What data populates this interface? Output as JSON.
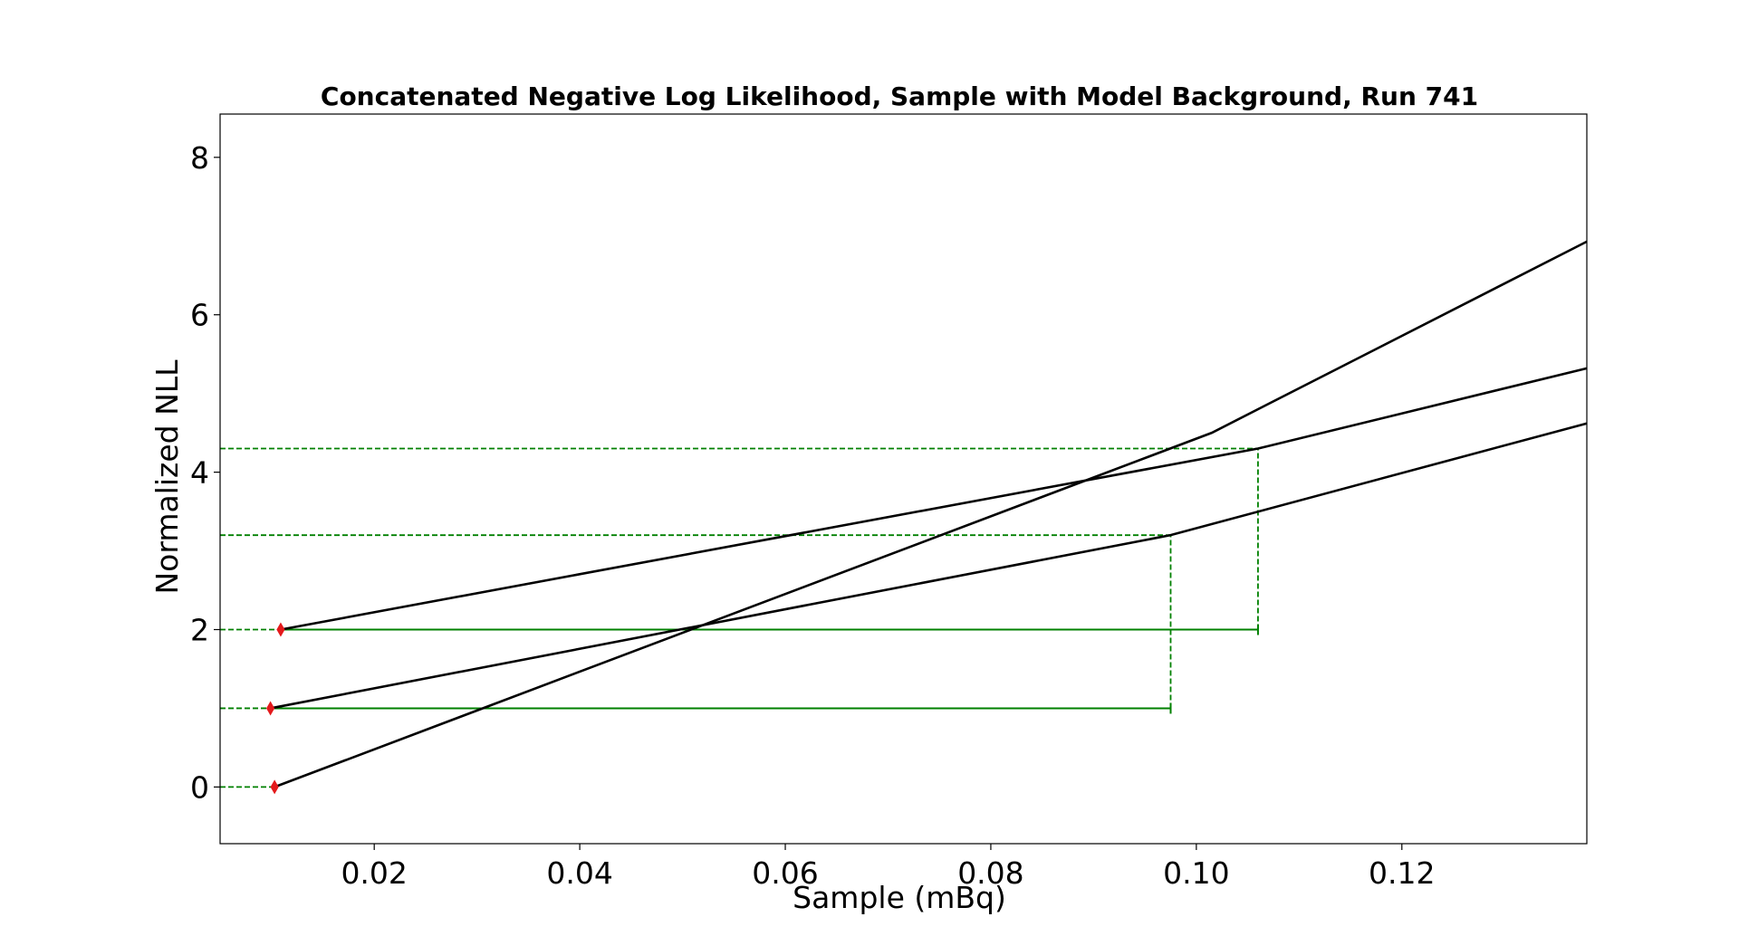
{
  "chart_data": {
    "type": "line",
    "title": "Concatenated Negative Log Likelihood, Sample with Model Background, Run 741",
    "xlabel": "Sample (mBq)",
    "ylabel": "Normalized NLL",
    "xlim": [
      0.005,
      0.138
    ],
    "ylim": [
      -0.72,
      8.55
    ],
    "x_ticks": [
      0.02,
      0.04,
      0.06,
      0.08,
      0.1,
      0.12
    ],
    "x_tick_labels": [
      "0.02",
      "0.04",
      "0.06",
      "0.08",
      "0.10",
      "0.12"
    ],
    "y_ticks": [
      0,
      2,
      4,
      6,
      8
    ],
    "y_tick_labels": [
      "0",
      "2",
      "4",
      "6",
      "8"
    ],
    "grid": false,
    "series": [
      {
        "color": "#000000",
        "x": [
          0.0103,
          0.1015,
          0.138
        ],
        "y": [
          0.0,
          4.5,
          6.93
        ]
      },
      {
        "color": "#000000",
        "x": [
          0.0099,
          0.0975,
          0.138
        ],
        "y": [
          1.0,
          3.2,
          4.62
        ]
      },
      {
        "color": "#000000",
        "x": [
          0.0109,
          0.106,
          0.138
        ],
        "y": [
          2.0,
          4.3,
          5.32
        ]
      }
    ],
    "minima": [
      {
        "x": 0.0103,
        "y": 0.0,
        "color": "#e41a1c"
      },
      {
        "x": 0.0099,
        "y": 1.0,
        "color": "#e41a1c"
      },
      {
        "x": 0.0109,
        "y": 2.0,
        "color": "#e41a1c"
      }
    ],
    "dashed_hlines": [
      {
        "y": 0.0,
        "x_end": 0.0103
      },
      {
        "y": 1.0,
        "x_end": 0.0099
      },
      {
        "y": 2.0,
        "x_end": 0.0109
      },
      {
        "y": 3.2,
        "x_end": 0.0975
      },
      {
        "y": 4.3,
        "x_end": 0.106
      }
    ],
    "dashed_vlines": [
      {
        "x": 0.0975,
        "y_from": 1.0,
        "y_to": 3.2
      },
      {
        "x": 0.106,
        "y_from": 2.0,
        "y_to": 4.3
      }
    ],
    "intervals": [
      {
        "y": 1.0,
        "x_start": 0.0099,
        "x_end": 0.0975
      },
      {
        "y": 2.0,
        "x_start": 0.0109,
        "x_end": 0.106
      }
    ],
    "interval_color": "#008000"
  }
}
